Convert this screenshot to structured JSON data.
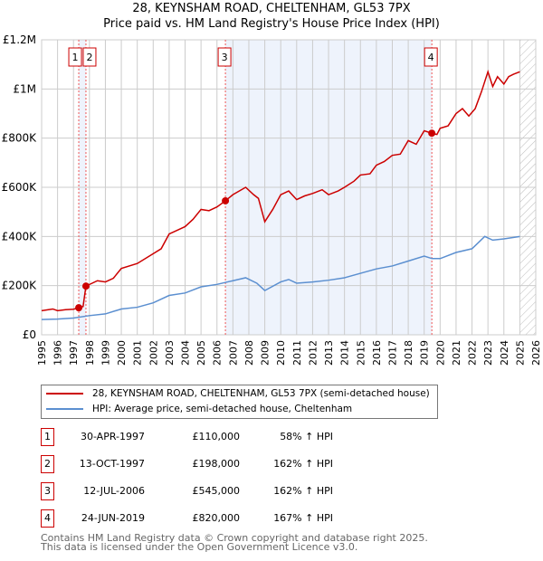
{
  "title": "28, KEYNSHAM ROAD, CHELTENHAM, GL53 7PX",
  "subtitle": "Price paid vs. HM Land Registry's House Price Index (HPI)",
  "chart_data": {
    "type": "line",
    "xlim": [
      1995,
      2026
    ],
    "ylim": [
      0,
      1200000
    ],
    "yticks": [
      0,
      200000,
      400000,
      600000,
      800000,
      1000000,
      1200000
    ],
    "ytick_labels": [
      "£0",
      "£200K",
      "£400K",
      "£600K",
      "£800K",
      "£1M",
      "£1.2M"
    ],
    "xticks": [
      1995,
      1996,
      1997,
      1998,
      1999,
      2000,
      2001,
      2002,
      2003,
      2004,
      2005,
      2006,
      2007,
      2008,
      2009,
      2010,
      2011,
      2012,
      2013,
      2014,
      2015,
      2016,
      2017,
      2018,
      2019,
      2020,
      2021,
      2022,
      2023,
      2024,
      2025,
      2026
    ],
    "grid": true,
    "forecast_hatch_from": 2025,
    "shaded_ranges": [
      [
        1997.33,
        1997.78
      ],
      [
        2006.53,
        2019.48
      ]
    ],
    "series": [
      {
        "name": "28, KEYNSHAM ROAD, CHELTENHAM, GL53 7PX (semi-detached house)",
        "color": "#cc0000",
        "x": [
          1995,
          1995.7,
          1996,
          1996.5,
          1997,
          1997.33,
          1997.6,
          1997.78,
          1998.5,
          1999,
          1999.5,
          2000,
          2001,
          2002,
          2002.5,
          2003,
          2004,
          2004.5,
          2005,
          2005.5,
          2006,
          2006.53,
          2007,
          2007.8,
          2008.3,
          2008.6,
          2009,
          2009.5,
          2010,
          2010.5,
          2011,
          2011.5,
          2012,
          2012.6,
          2013,
          2013.6,
          2014,
          2014.6,
          2015,
          2015.6,
          2016,
          2016.5,
          2017,
          2017.5,
          2018,
          2018.5,
          2019,
          2019.48,
          2019.8,
          2020,
          2020.5,
          2021,
          2021.4,
          2021.8,
          2022.2,
          2022.6,
          2023,
          2023.3,
          2023.6,
          2024,
          2024.3,
          2024.6,
          2025
        ],
        "y": [
          98000,
          105000,
          98000,
          102000,
          104000,
          110000,
          115000,
          198000,
          220000,
          215000,
          230000,
          270000,
          290000,
          330000,
          350000,
          410000,
          440000,
          470000,
          510000,
          505000,
          520000,
          545000,
          570000,
          600000,
          570000,
          555000,
          460000,
          510000,
          570000,
          585000,
          550000,
          565000,
          575000,
          590000,
          570000,
          585000,
          600000,
          625000,
          650000,
          655000,
          690000,
          705000,
          730000,
          735000,
          790000,
          775000,
          830000,
          820000,
          815000,
          840000,
          850000,
          900000,
          920000,
          890000,
          920000,
          990000,
          1070000,
          1010000,
          1050000,
          1020000,
          1050000,
          1060000,
          1070000
        ]
      },
      {
        "name": "HPI: Average price, semi-detached house, Cheltenham",
        "color": "#5b8fd0",
        "x": [
          1995,
          1996,
          1997,
          1998,
          1999,
          2000,
          2001,
          2002,
          2003,
          2004,
          2005,
          2006,
          2007,
          2007.8,
          2008.5,
          2009,
          2010,
          2010.5,
          2011,
          2012,
          2013,
          2014,
          2015,
          2016,
          2017,
          2018,
          2019,
          2019.5,
          2020,
          2021,
          2022,
          2022.8,
          2023.3,
          2024,
          2025
        ],
        "y": [
          62000,
          64000,
          68000,
          78000,
          85000,
          105000,
          112000,
          130000,
          160000,
          170000,
          195000,
          205000,
          220000,
          232000,
          210000,
          180000,
          215000,
          225000,
          210000,
          215000,
          222000,
          232000,
          250000,
          268000,
          280000,
          300000,
          320000,
          310000,
          310000,
          335000,
          350000,
          400000,
          385000,
          390000,
          400000
        ]
      }
    ],
    "sales": [
      {
        "num": "1",
        "x": 1997.33,
        "price": 110000,
        "date": "30-APR-1997",
        "price_label": "£110,000",
        "hpi": "58% ↑ HPI"
      },
      {
        "num": "2",
        "x": 1997.78,
        "price": 198000,
        "date": "13-OCT-1997",
        "price_label": "£198,000",
        "hpi": "162% ↑ HPI"
      },
      {
        "num": "3",
        "x": 2006.53,
        "price": 545000,
        "date": "12-JUL-2006",
        "price_label": "£545,000",
        "hpi": "162% ↑ HPI"
      },
      {
        "num": "4",
        "x": 2019.48,
        "price": 820000,
        "date": "24-JUN-2019",
        "price_label": "£820,000",
        "hpi": "167% ↑ HPI"
      }
    ]
  },
  "legend": {
    "red": "28, KEYNSHAM ROAD, CHELTENHAM, GL53 7PX (semi-detached house)",
    "blue": "HPI: Average price, semi-detached house, Cheltenham"
  },
  "footer": {
    "line1": "Contains HM Land Registry data © Crown copyright and database right 2025.",
    "line2": "This data is licensed under the Open Government Licence v3.0."
  }
}
